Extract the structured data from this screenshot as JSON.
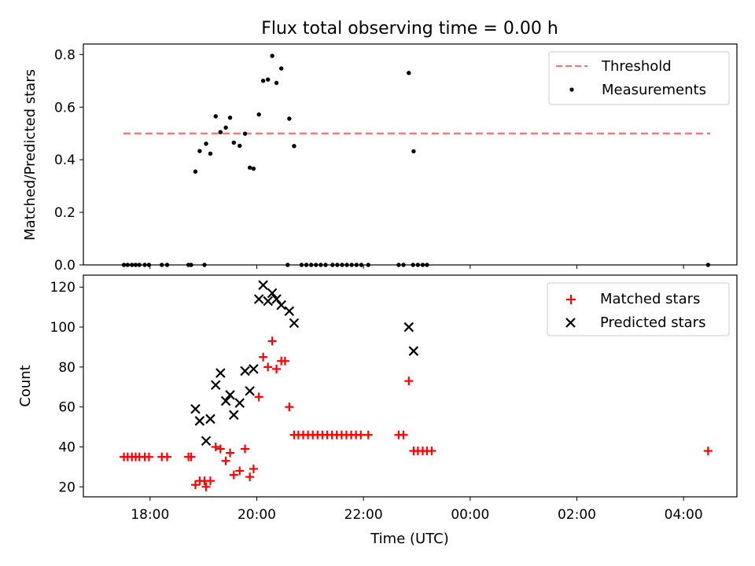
{
  "chart_data": {
    "type": "scatter",
    "title": "Flux total observing time = 0.00 h",
    "xlabel": "Time (UTC)",
    "x_ticks": [
      "18:00",
      "20:00",
      "22:00",
      "00:00",
      "02:00",
      "04:00"
    ],
    "x_range_hours": [
      16.75,
      29.0
    ],
    "panels": [
      {
        "name": "ratio",
        "ylabel": "Matched/Predicted stars",
        "ylim": [
          0,
          0.84
        ],
        "yticks": [
          "0.0",
          "0.2",
          "0.4",
          "0.6",
          "0.8"
        ],
        "legend_position": "top-right",
        "threshold": {
          "name": "Threshold",
          "value": 0.5,
          "x_start": 17.5,
          "x_end": 28.5,
          "color": "#ff6f6f"
        },
        "series": [
          {
            "name": "Measurements",
            "marker": "dot",
            "color": "#000000",
            "points": [
              [
                17.51,
                0
              ],
              [
                17.58,
                0
              ],
              [
                17.66,
                0
              ],
              [
                17.73,
                0
              ],
              [
                17.8,
                0
              ],
              [
                17.9,
                0
              ],
              [
                17.98,
                0
              ],
              [
                18.22,
                0
              ],
              [
                18.32,
                0
              ],
              [
                18.72,
                0
              ],
              [
                18.77,
                0
              ],
              [
                19.02,
                0
              ],
              [
                20.58,
                0
              ],
              [
                20.84,
                0
              ],
              [
                20.93,
                0
              ],
              [
                21.02,
                0
              ],
              [
                21.11,
                0
              ],
              [
                21.2,
                0
              ],
              [
                21.29,
                0
              ],
              [
                21.42,
                0
              ],
              [
                21.51,
                0
              ],
              [
                21.6,
                0
              ],
              [
                21.69,
                0
              ],
              [
                21.78,
                0
              ],
              [
                21.87,
                0
              ],
              [
                21.96,
                0
              ],
              [
                22.09,
                0
              ],
              [
                22.66,
                0
              ],
              [
                22.75,
                0
              ],
              [
                22.93,
                0
              ],
              [
                23.02,
                0
              ],
              [
                23.11,
                0
              ],
              [
                23.19,
                0
              ],
              [
                28.46,
                0
              ],
              [
                18.85,
                0.355
              ],
              [
                18.93,
                0.433
              ],
              [
                19.05,
                0.461
              ],
              [
                19.13,
                0.423
              ],
              [
                19.23,
                0.565
              ],
              [
                19.32,
                0.505
              ],
              [
                19.42,
                0.522
              ],
              [
                19.5,
                0.56
              ],
              [
                19.57,
                0.465
              ],
              [
                19.68,
                0.453
              ],
              [
                19.78,
                0.499
              ],
              [
                19.87,
                0.37
              ],
              [
                19.94,
                0.366
              ],
              [
                20.04,
                0.572
              ],
              [
                20.12,
                0.7
              ],
              [
                20.21,
                0.705
              ],
              [
                20.29,
                0.795
              ],
              [
                20.37,
                0.692
              ],
              [
                20.46,
                0.747
              ],
              [
                20.61,
                0.556
              ],
              [
                20.7,
                0.452
              ],
              [
                22.85,
                0.73
              ],
              [
                22.94,
                0.432
              ]
            ]
          }
        ]
      },
      {
        "name": "counts",
        "ylabel": "Count",
        "ylim": [
          15,
          126
        ],
        "yticks": [
          "20",
          "40",
          "60",
          "80",
          "100",
          "120"
        ],
        "legend_position": "top-right",
        "series": [
          {
            "name": "Matched stars",
            "marker": "plus",
            "color": "#ff0000",
            "points": [
              [
                17.51,
                35
              ],
              [
                17.58,
                35
              ],
              [
                17.66,
                35
              ],
              [
                17.73,
                35
              ],
              [
                17.8,
                35
              ],
              [
                17.9,
                35
              ],
              [
                17.98,
                35
              ],
              [
                18.22,
                35
              ],
              [
                18.32,
                35
              ],
              [
                18.72,
                35
              ],
              [
                18.77,
                35
              ],
              [
                18.85,
                21
              ],
              [
                18.93,
                23
              ],
              [
                19.02,
                23
              ],
              [
                19.05,
                20
              ],
              [
                19.13,
                23
              ],
              [
                19.23,
                40
              ],
              [
                19.32,
                39
              ],
              [
                19.42,
                33
              ],
              [
                19.5,
                37
              ],
              [
                19.57,
                26
              ],
              [
                19.68,
                28
              ],
              [
                19.78,
                39
              ],
              [
                19.87,
                25
              ],
              [
                19.94,
                29
              ],
              [
                20.04,
                65
              ],
              [
                20.12,
                85
              ],
              [
                20.21,
                80
              ],
              [
                20.29,
                93
              ],
              [
                20.37,
                79
              ],
              [
                20.46,
                83
              ],
              [
                20.53,
                83
              ],
              [
                20.61,
                60
              ],
              [
                20.7,
                46
              ],
              [
                20.78,
                46
              ],
              [
                20.87,
                46
              ],
              [
                20.96,
                46
              ],
              [
                21.05,
                46
              ],
              [
                21.14,
                46
              ],
              [
                21.23,
                46
              ],
              [
                21.32,
                46
              ],
              [
                21.41,
                46
              ],
              [
                21.5,
                46
              ],
              [
                21.59,
                46
              ],
              [
                21.68,
                46
              ],
              [
                21.77,
                46
              ],
              [
                21.86,
                46
              ],
              [
                21.95,
                46
              ],
              [
                22.09,
                46
              ],
              [
                22.66,
                46
              ],
              [
                22.75,
                46
              ],
              [
                22.85,
                73
              ],
              [
                22.94,
                38
              ],
              [
                23.02,
                38
              ],
              [
                23.11,
                38
              ],
              [
                23.19,
                38
              ],
              [
                23.28,
                38
              ],
              [
                28.46,
                38
              ]
            ]
          },
          {
            "name": "Predicted stars",
            "marker": "x",
            "color": "#000000",
            "points": [
              [
                18.85,
                59
              ],
              [
                18.93,
                53
              ],
              [
                19.05,
                43
              ],
              [
                19.13,
                54
              ],
              [
                19.23,
                71
              ],
              [
                19.32,
                77
              ],
              [
                19.42,
                63
              ],
              [
                19.5,
                66
              ],
              [
                19.57,
                56
              ],
              [
                19.68,
                62
              ],
              [
                19.78,
                78
              ],
              [
                19.87,
                68
              ],
              [
                19.94,
                79
              ],
              [
                20.04,
                114
              ],
              [
                20.12,
                121
              ],
              [
                20.21,
                113
              ],
              [
                20.29,
                117
              ],
              [
                20.37,
                114
              ],
              [
                20.46,
                111
              ],
              [
                20.61,
                108
              ],
              [
                20.7,
                102
              ],
              [
                22.85,
                100
              ],
              [
                22.94,
                88
              ]
            ]
          }
        ]
      }
    ]
  }
}
